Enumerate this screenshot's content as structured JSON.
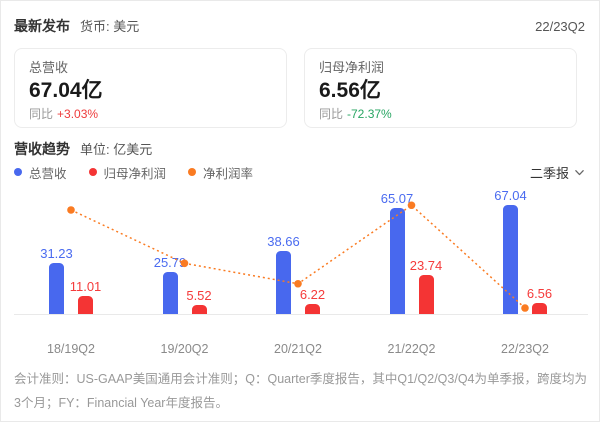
{
  "header": {
    "title": "最新发布",
    "currency_label": "货币: 美元",
    "period": "22/23Q2"
  },
  "cards": [
    {
      "title": "总营收",
      "value": "67.04亿",
      "yoy_label": "同比",
      "yoy_value": "+3.03%",
      "yoy_color": "#ee3b3b"
    },
    {
      "title": "归母净利润",
      "value": "6.56亿",
      "yoy_label": "同比",
      "yoy_value": "-72.37%",
      "yoy_color": "#27a562"
    }
  ],
  "chart_section": {
    "title": "营收趋势",
    "unit_label": "单位: 亿美元",
    "legend": [
      {
        "label": "总营收",
        "color": "#4868ee"
      },
      {
        "label": "归母净利润",
        "color": "#f43434"
      },
      {
        "label": "净利润率",
        "color": "#fa7b22"
      }
    ],
    "period_selector": "二季报"
  },
  "chart_data": {
    "type": "bar+line",
    "categories": [
      "18/19Q2",
      "19/20Q2",
      "20/21Q2",
      "21/22Q2",
      "22/23Q2"
    ],
    "series": [
      {
        "name": "总营收",
        "type": "bar",
        "color": "#4868ee",
        "label_color": "#4a6bf0",
        "values": [
          31.23,
          25.79,
          38.66,
          65.07,
          67.04
        ]
      },
      {
        "name": "归母净利润",
        "type": "bar",
        "color": "#f43434",
        "label_color": "#f53b3b",
        "values": [
          11.01,
          5.52,
          6.22,
          23.74,
          6.56
        ]
      },
      {
        "name": "净利润率",
        "type": "line",
        "color": "#fa7b22",
        "unit": "%",
        "values": [
          35.25,
          21.4,
          16.09,
          36.48,
          9.79
        ]
      }
    ],
    "ylabel": "亿美元",
    "grid": false,
    "legend_position": "top-left",
    "value_labels_shown": [
      "总营收",
      "归母净利润"
    ]
  },
  "footnote": "会计准则：US-GAAP美国通用会计准则；Q：Quarter季度报告，其中Q1/Q2/Q3/Q4为单季报，跨度均为3个月；FY：Financial Year年度报告。"
}
